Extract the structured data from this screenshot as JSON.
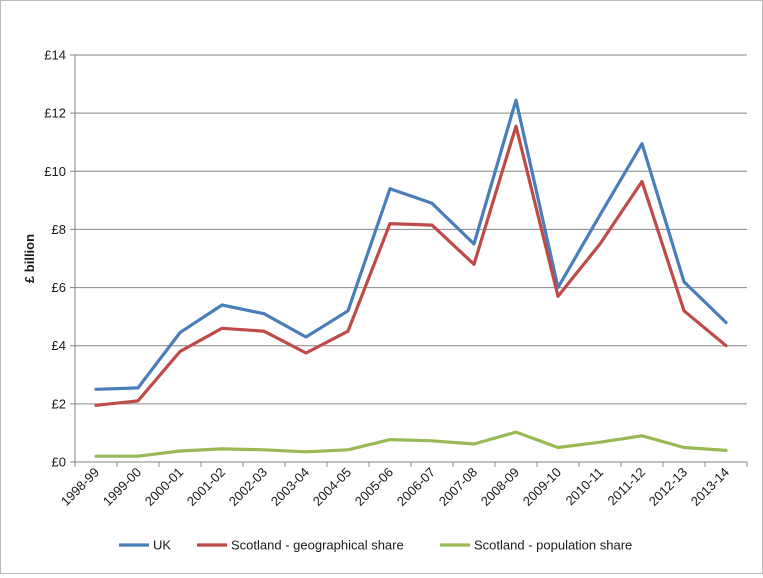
{
  "chart_data": {
    "type": "line",
    "title": "",
    "xlabel": "",
    "ylabel": "£ billion",
    "ylim": [
      0,
      14
    ],
    "yticks": [
      0,
      2,
      4,
      6,
      8,
      10,
      12,
      14
    ],
    "ytick_labels": [
      "£0",
      "£2",
      "£4",
      "£6",
      "£8",
      "£10",
      "£12",
      "£14"
    ],
    "grid": "horizontal",
    "legend_position": "bottom",
    "categories": [
      "1998-99",
      "1999-00",
      "2000-01",
      "2001-02",
      "2002-03",
      "2003-04",
      "2004-05",
      "2005-06",
      "2006-07",
      "2007-08",
      "2008-09",
      "2009-10",
      "2010-11",
      "2011-12",
      "2012-13",
      "2013-14"
    ],
    "series": [
      {
        "name": "UK",
        "color": "#4a7ebb",
        "values": [
          2.5,
          2.55,
          4.45,
          5.4,
          5.1,
          4.3,
          5.2,
          9.4,
          8.9,
          7.5,
          12.45,
          6.0,
          8.5,
          10.95,
          6.2,
          4.8
        ]
      },
      {
        "name": "Scotland - geographical share",
        "color": "#be4b48",
        "values": [
          1.95,
          2.1,
          3.8,
          4.6,
          4.5,
          3.75,
          4.5,
          8.2,
          8.15,
          6.8,
          11.55,
          5.7,
          7.5,
          9.65,
          5.2,
          4.0
        ]
      },
      {
        "name": "Scotland - population share",
        "color": "#98b954",
        "values": [
          0.2,
          0.2,
          0.38,
          0.45,
          0.42,
          0.35,
          0.42,
          0.77,
          0.73,
          0.62,
          1.03,
          0.5,
          0.68,
          0.9,
          0.5,
          0.4
        ]
      }
    ]
  }
}
